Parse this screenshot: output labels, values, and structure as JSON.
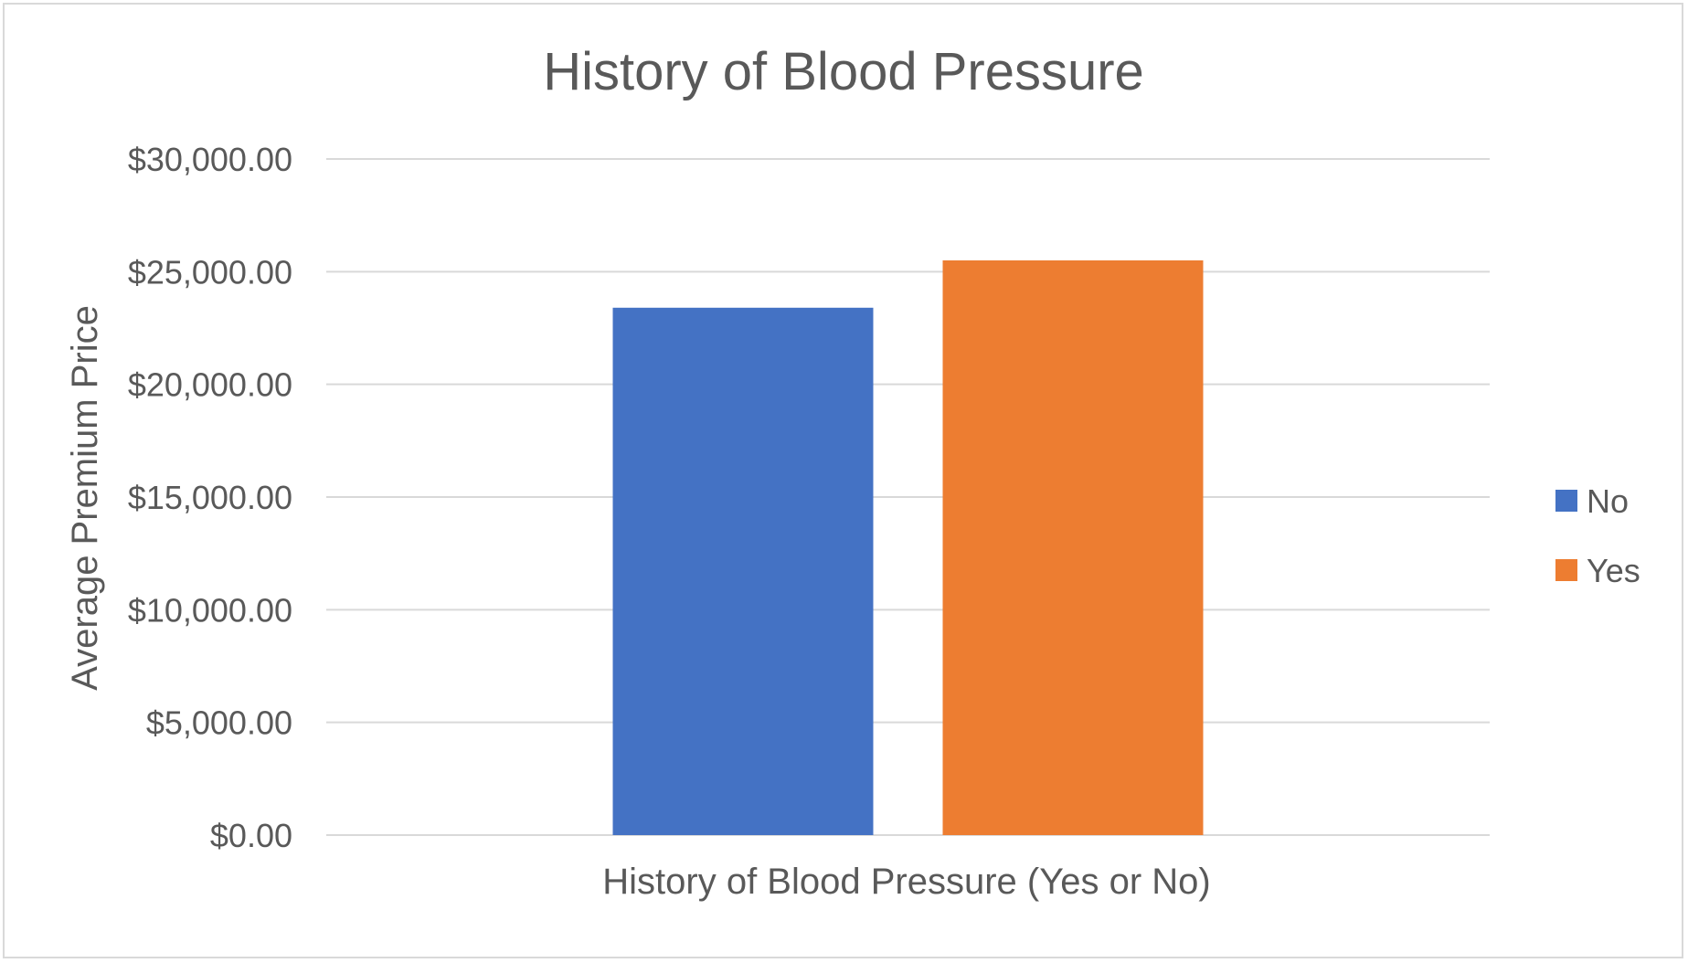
{
  "chart_data": {
    "type": "bar",
    "title": "History of Blood Pressure",
    "xlabel": "History of Blood Pressure (Yes or No)",
    "ylabel": "Average Premium Price",
    "ylim": [
      0,
      30000
    ],
    "yticks": [
      "$0.00",
      "$5,000.00",
      "$10,000.00",
      "$15,000.00",
      "$20,000.00",
      "$25,000.00",
      "$30,000.00"
    ],
    "grid": true,
    "legend_position": "right",
    "series": [
      {
        "name": "No",
        "values": [
          23400
        ],
        "color": "#4472C4"
      },
      {
        "name": "Yes",
        "values": [
          25500
        ],
        "color": "#ED7D31"
      }
    ]
  }
}
